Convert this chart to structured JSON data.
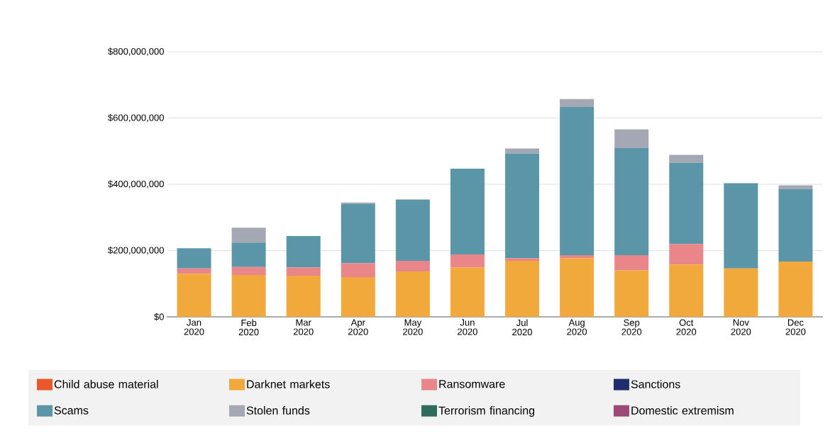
{
  "chart_data": {
    "type": "bar",
    "stacked": true,
    "categories": [
      "Jan 2020",
      "Feb 2020",
      "Mar 2020",
      "Apr 2020",
      "May 2020",
      "Jun 2020",
      "Jul 2020",
      "Aug 2020",
      "Sep 2020",
      "Oct 2020",
      "Nov 2020",
      "Dec 2020"
    ],
    "series": [
      {
        "name": "Child abuse material",
        "color": "#e8582a",
        "values": [
          0,
          0,
          0,
          0,
          0,
          0,
          0,
          0,
          0,
          0,
          0,
          0
        ]
      },
      {
        "name": "Darknet markets",
        "color": "#f2a93b",
        "values": [
          130000000,
          126000000,
          124000000,
          120000000,
          137000000,
          149000000,
          169000000,
          177000000,
          140000000,
          158000000,
          146000000,
          167000000
        ]
      },
      {
        "name": "Ransomware",
        "color": "#e8868a",
        "values": [
          16000000,
          24000000,
          25000000,
          42000000,
          32000000,
          39000000,
          8000000,
          9000000,
          46000000,
          62000000,
          0,
          0
        ]
      },
      {
        "name": "Sanctions",
        "color": "#1f2f6e",
        "values": [
          0,
          0,
          0,
          0,
          0,
          0,
          0,
          0,
          0,
          0,
          0,
          0
        ]
      },
      {
        "name": "Scams",
        "color": "#5b95a8",
        "values": [
          61000000,
          74000000,
          95000000,
          178000000,
          185000000,
          259000000,
          316000000,
          447000000,
          323000000,
          245000000,
          257000000,
          218000000
        ]
      },
      {
        "name": "Stolen funds",
        "color": "#a3a8b4",
        "values": [
          0,
          45000000,
          0,
          5000000,
          0,
          0,
          15000000,
          24000000,
          57000000,
          24000000,
          0,
          12000000
        ]
      },
      {
        "name": "Terrorism financing",
        "color": "#2f6b5a",
        "values": [
          0,
          0,
          0,
          0,
          0,
          0,
          0,
          0,
          0,
          0,
          0,
          0
        ]
      },
      {
        "name": "Domestic extremism",
        "color": "#9b4a78",
        "values": [
          0,
          0,
          0,
          0,
          0,
          0,
          0,
          0,
          0,
          0,
          0,
          0
        ]
      }
    ],
    "ylim": [
      0,
      800000000
    ],
    "yticks": [
      {
        "value": 0,
        "label": "$0"
      },
      {
        "value": 200000000,
        "label": "$200,000,000"
      },
      {
        "value": 400000000,
        "label": "$400,000,000"
      },
      {
        "value": 600000000,
        "label": "$600,000,000"
      },
      {
        "value": 800000000,
        "label": "$800,000,000"
      }
    ],
    "grid": "y",
    "legend": "bottom"
  }
}
